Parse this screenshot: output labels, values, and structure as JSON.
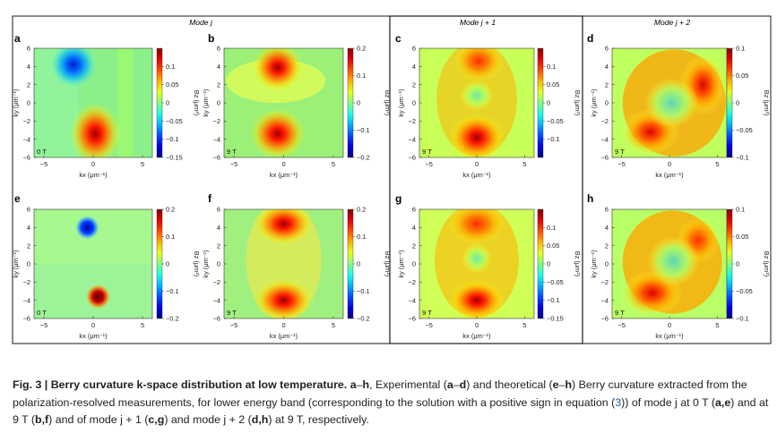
{
  "figure": {
    "group_titles": [
      "Mode j",
      "Mode j + 1",
      "Mode j + 2"
    ],
    "x_axis_label": "kx (μm⁻¹)",
    "y_axis_label": "ky (μm⁻¹)",
    "colorbar_label": "Bz (μm²)",
    "colormap": "jet",
    "frame_color": "#1a1a1a"
  },
  "chart_data": [
    {
      "panel": "a",
      "type": "heatmap",
      "title": "",
      "field": "0 T",
      "xlim": [
        -6,
        6
      ],
      "ylim": [
        -6,
        6
      ],
      "xticks": [
        "−5",
        "0",
        "5"
      ],
      "yticks": [
        "6",
        "4",
        "2",
        "0",
        "−2",
        "−4",
        "−6"
      ],
      "colorbar_range": [
        -0.15,
        0.15
      ],
      "colorbar_ticks": [
        "0.1",
        "0.05",
        "0",
        "−0.05",
        "−0.1",
        "−0.15"
      ],
      "features": [
        {
          "kx": -2,
          "ky": 4,
          "amp": -0.15
        },
        {
          "kx": 0,
          "ky": -3.5,
          "amp": 0.15
        }
      ]
    },
    {
      "panel": "b",
      "type": "heatmap",
      "title": "",
      "field": "9 T",
      "xlim": [
        -6,
        6
      ],
      "ylim": [
        -6,
        6
      ],
      "xticks": [
        "−5",
        "0",
        "5"
      ],
      "yticks": [
        "6",
        "4",
        "2",
        "0",
        "−2",
        "−4",
        "−6"
      ],
      "colorbar_range": [
        -0.2,
        0.2
      ],
      "colorbar_ticks": [
        "0.2",
        "0.1",
        "0",
        "−0.1",
        "−0.2"
      ],
      "features": [
        {
          "kx": -0.5,
          "ky": 4,
          "amp": 0.2
        },
        {
          "kx": -0.5,
          "ky": -3.5,
          "amp": 0.2
        }
      ]
    },
    {
      "panel": "c",
      "type": "heatmap",
      "title": "",
      "field": "9 T",
      "xlim": [
        -6,
        6
      ],
      "ylim": [
        -6,
        6
      ],
      "xticks": [
        "−5",
        "0",
        "5"
      ],
      "yticks": [
        "6",
        "4",
        "2",
        "0",
        "−2",
        "−4",
        "−6"
      ],
      "colorbar_range": [
        -0.15,
        0.15
      ],
      "colorbar_ticks": [
        "0.1",
        "0.05",
        "0",
        "−0.05",
        "−0.1"
      ],
      "features": [
        {
          "kx": 0,
          "ky": 4.5,
          "amp": 0.12
        },
        {
          "kx": 0,
          "ky": -4,
          "amp": 0.15
        },
        {
          "kx": 0,
          "ky": 0,
          "amp": 0.02
        }
      ]
    },
    {
      "panel": "d",
      "type": "heatmap",
      "title": "",
      "field": "9 T",
      "xlim": [
        -6,
        6
      ],
      "ylim": [
        -6,
        6
      ],
      "xticks": [
        "−5",
        "0",
        "5"
      ],
      "yticks": [
        "6",
        "4",
        "2",
        "0",
        "−2",
        "−4",
        "−6"
      ],
      "colorbar_range": [
        -0.1,
        0.1
      ],
      "colorbar_ticks": [
        "0.1",
        "0.05",
        "0",
        "−0.05",
        "−0.1"
      ],
      "features": [
        {
          "kx": 0,
          "ky": 0,
          "amp": 0.1,
          "shape": "ring",
          "radius": 4
        }
      ]
    },
    {
      "panel": "e",
      "type": "heatmap",
      "title": "",
      "field": "0 T",
      "xlim": [
        -6,
        6
      ],
      "ylim": [
        -6,
        6
      ],
      "xticks": [
        "−5",
        "0",
        "5"
      ],
      "yticks": [
        "6",
        "4",
        "2",
        "0",
        "−2",
        "−4",
        "−6"
      ],
      "colorbar_range": [
        -0.2,
        0.2
      ],
      "colorbar_ticks": [
        "0.2",
        "0.1",
        "0",
        "−0.1",
        "−0.2"
      ],
      "features": [
        {
          "kx": -0.5,
          "ky": 4,
          "amp": -0.2
        },
        {
          "kx": 0.5,
          "ky": -3.5,
          "amp": 0.2
        }
      ]
    },
    {
      "panel": "f",
      "type": "heatmap",
      "title": "",
      "field": "9 T",
      "xlim": [
        -6,
        6
      ],
      "ylim": [
        -6,
        6
      ],
      "xticks": [
        "−5",
        "0",
        "5"
      ],
      "yticks": [
        "6",
        "4",
        "2",
        "0",
        "−2",
        "−4",
        "−6"
      ],
      "colorbar_range": [
        -0.2,
        0.2
      ],
      "colorbar_ticks": [
        "0.2",
        "0.1",
        "0",
        "−0.1",
        "−0.2"
      ],
      "features": [
        {
          "kx": 0,
          "ky": 4.5,
          "amp": 0.2
        },
        {
          "kx": 0,
          "ky": -4,
          "amp": 0.2
        }
      ]
    },
    {
      "panel": "g",
      "type": "heatmap",
      "title": "",
      "field": "9 T",
      "xlim": [
        -6,
        6
      ],
      "ylim": [
        -6,
        6
      ],
      "xticks": [
        "−5",
        "0",
        "5"
      ],
      "yticks": [
        "6",
        "4",
        "2",
        "0",
        "−2",
        "−4",
        "−6"
      ],
      "colorbar_range": [
        -0.15,
        0.15
      ],
      "colorbar_ticks": [
        "0.1",
        "0.05",
        "0",
        "−0.05",
        "−0.1",
        "−0.15"
      ],
      "features": [
        {
          "kx": 0,
          "ky": 4.5,
          "amp": 0.15
        },
        {
          "kx": 0,
          "ky": -4,
          "amp": 0.15
        }
      ]
    },
    {
      "panel": "h",
      "type": "heatmap",
      "title": "",
      "field": "9 T",
      "xlim": [
        -6,
        6
      ],
      "ylim": [
        -6,
        6
      ],
      "xticks": [
        "−5",
        "0",
        "5"
      ],
      "yticks": [
        "6",
        "4",
        "2",
        "0",
        "−2",
        "−4",
        "−6"
      ],
      "colorbar_range": [
        -0.1,
        0.1
      ],
      "colorbar_ticks": [
        "0.1",
        "0.05",
        "0",
        "−0.05",
        "−0.1"
      ],
      "features": [
        {
          "kx": 0,
          "ky": 0,
          "amp": 0.1,
          "shape": "ring",
          "radius": 4
        }
      ]
    }
  ],
  "caption": {
    "label": "Fig. 3 | Berry curvature k-space distribution at low temperature.",
    "parts": [
      {
        "t": " ",
        "style": "n"
      },
      {
        "t": "a",
        "style": "b"
      },
      {
        "t": "–",
        "style": "n"
      },
      {
        "t": "h",
        "style": "b"
      },
      {
        "t": ", Experimental (",
        "style": "n"
      },
      {
        "t": "a",
        "style": "b"
      },
      {
        "t": "–",
        "style": "n"
      },
      {
        "t": "d",
        "style": "b"
      },
      {
        "t": ") and theoretical (",
        "style": "n"
      },
      {
        "t": "e",
        "style": "b"
      },
      {
        "t": "–",
        "style": "n"
      },
      {
        "t": "h",
        "style": "b"
      },
      {
        "t": ") Berry curvature extracted from the polarization-resolved measurements, for lower energy band (corresponding to the solution with a positive sign in equation (",
        "style": "n"
      },
      {
        "t": "3",
        "style": "ref"
      },
      {
        "t": ")) of mode j at 0 T (",
        "style": "n"
      },
      {
        "t": "a,e",
        "style": "b"
      },
      {
        "t": ") and at 9 T (",
        "style": "n"
      },
      {
        "t": "b,f",
        "style": "b"
      },
      {
        "t": ") and of mode j + 1 (",
        "style": "n"
      },
      {
        "t": "c,g",
        "style": "b"
      },
      {
        "t": ") and mode j + 2 (",
        "style": "n"
      },
      {
        "t": "d,h",
        "style": "b"
      },
      {
        "t": ") at 9 T, respectively.",
        "style": "n"
      }
    ]
  }
}
